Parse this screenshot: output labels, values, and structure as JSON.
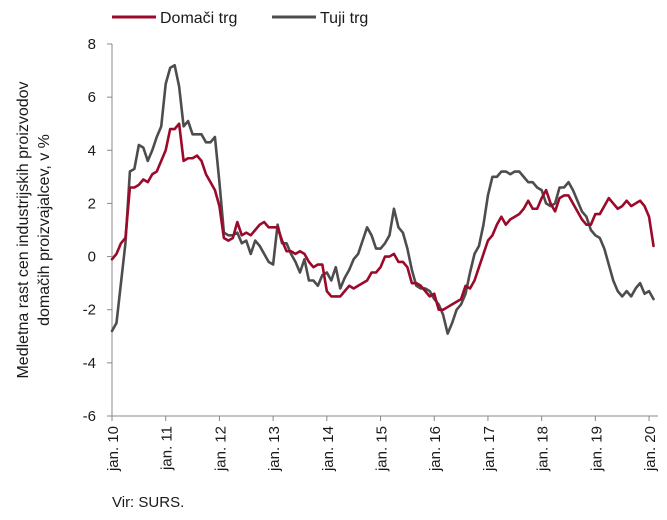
{
  "chart_data": {
    "type": "line",
    "title": "",
    "ylabel_lines": [
      "Medletna rast cen industrijskih proizvodov",
      "domačih proizvajalcev, v %"
    ],
    "xlabel": "",
    "ylim": [
      -6,
      8
    ],
    "yticks": [
      -6,
      -4,
      -2,
      0,
      2,
      4,
      6,
      8
    ],
    "x_range": [
      0,
      122
    ],
    "xticks": [
      {
        "label": "jan. 10",
        "x": 0
      },
      {
        "label": "jan. 11",
        "x": 12
      },
      {
        "label": "jan. 12",
        "x": 24
      },
      {
        "label": "jan. 13",
        "x": 36
      },
      {
        "label": "jan. 14",
        "x": 48
      },
      {
        "label": "jan. 15",
        "x": 60
      },
      {
        "label": "jan. 16",
        "x": 72
      },
      {
        "label": "jan. 17",
        "x": 84
      },
      {
        "label": "jan. 18",
        "x": 96
      },
      {
        "label": "jan. 19",
        "x": 108
      },
      {
        "label": "jan. 20",
        "x": 120
      }
    ],
    "grid": false,
    "legend_position": "top-left",
    "series": [
      {
        "name": "Domači trg",
        "color": "#9b0a2a",
        "values": [
          -0.1,
          0.1,
          0.5,
          0.7,
          2.6,
          2.6,
          2.7,
          2.9,
          2.8,
          3.1,
          3.2,
          3.6,
          4.0,
          4.8,
          4.8,
          5.0,
          3.6,
          3.7,
          3.7,
          3.8,
          3.6,
          3.1,
          2.8,
          2.5,
          1.9,
          0.7,
          0.6,
          0.7,
          1.3,
          0.8,
          0.9,
          0.8,
          1.0,
          1.2,
          1.3,
          1.1,
          1.1,
          1.1,
          0.6,
          0.2,
          0.2,
          0.1,
          0.2,
          0.1,
          -0.2,
          -0.4,
          -0.3,
          -0.3,
          -1.3,
          -1.5,
          -1.5,
          -1.5,
          -1.3,
          -1.1,
          -1.2,
          -1.1,
          -1.0,
          -0.9,
          -0.6,
          -0.6,
          -0.4,
          0.0,
          0.0,
          0.1,
          -0.2,
          -0.2,
          -0.4,
          -1.0,
          -1.0,
          -1.1,
          -1.3,
          -1.5,
          -1.4,
          -2.0,
          -2.0,
          -1.9,
          -1.8,
          -1.7,
          -1.6,
          -1.1,
          -1.2,
          -0.9,
          -0.4,
          0.1,
          0.6,
          0.8,
          1.2,
          1.5,
          1.2,
          1.4,
          1.5,
          1.6,
          1.8,
          2.1,
          1.8,
          1.8,
          2.2,
          2.5,
          2.0,
          1.7,
          2.2,
          2.3,
          2.3,
          2.0,
          1.7,
          1.4,
          1.2,
          1.2,
          1.6,
          1.6,
          1.9,
          2.2,
          2.0,
          1.8,
          1.9,
          2.1,
          1.9,
          2.0,
          2.1,
          1.9,
          1.5,
          0.4
        ]
      },
      {
        "name": "Tuji trg",
        "color": "#4d4d4d",
        "values": [
          -2.8,
          -2.5,
          -1.0,
          0.5,
          3.2,
          3.3,
          4.2,
          4.1,
          3.6,
          4.0,
          4.5,
          4.9,
          6.5,
          7.1,
          7.2,
          6.4,
          4.9,
          5.1,
          4.6,
          4.6,
          4.6,
          4.3,
          4.3,
          4.5,
          2.8,
          0.9,
          0.8,
          0.8,
          0.9,
          0.5,
          0.6,
          0.1,
          0.6,
          0.4,
          0.1,
          -0.2,
          -0.3,
          1.2,
          0.5,
          0.5,
          0.1,
          -0.2,
          -0.6,
          -0.1,
          -0.9,
          -0.9,
          -1.1,
          -0.7,
          -0.6,
          -0.9,
          -0.4,
          -1.2,
          -0.8,
          -0.5,
          -0.1,
          0.1,
          0.6,
          1.1,
          0.8,
          0.3,
          0.3,
          0.5,
          0.8,
          1.8,
          1.1,
          0.9,
          0.3,
          -0.5,
          -1.1,
          -1.2,
          -1.2,
          -1.3,
          -1.6,
          -1.8,
          -2.2,
          -2.9,
          -2.5,
          -2.0,
          -1.8,
          -1.4,
          -0.6,
          0.1,
          0.4,
          1.2,
          2.3,
          3.0,
          3.0,
          3.2,
          3.2,
          3.1,
          3.2,
          3.2,
          3.0,
          2.8,
          2.8,
          2.6,
          2.5,
          2.0,
          1.9,
          2.0,
          2.6,
          2.6,
          2.8,
          2.5,
          2.1,
          1.7,
          1.5,
          1.0,
          0.8,
          0.7,
          0.3,
          -0.3,
          -0.9,
          -1.3,
          -1.5,
          -1.3,
          -1.5,
          -1.2,
          -1.0,
          -1.4,
          -1.3,
          -1.6
        ]
      }
    ]
  },
  "source": "Vir: SURS."
}
